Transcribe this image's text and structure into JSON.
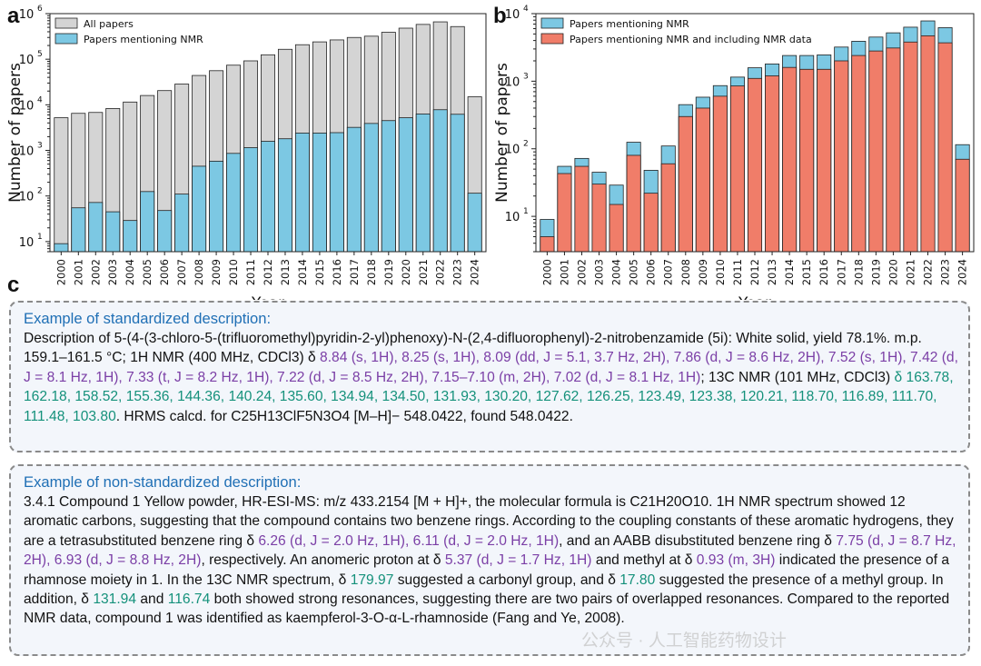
{
  "panels": {
    "a": "a",
    "b": "b",
    "c": "c"
  },
  "chart_data": [
    {
      "type": "bar",
      "panel": "a",
      "title": "",
      "xlabel": "Year",
      "ylabel": "Number of papers",
      "yscale": "log",
      "ylim": [
        6,
        1000000
      ],
      "yticks": [
        10,
        100,
        1000,
        10000,
        100000,
        1000000
      ],
      "ytick_labels": [
        "10^1",
        "10^2",
        "10^3",
        "10^4",
        "10^5",
        "10^6"
      ],
      "legend_position": "top-left",
      "categories": [
        "2000",
        "2001",
        "2002",
        "2003",
        "2004",
        "2005",
        "2006",
        "2007",
        "2008",
        "2009",
        "2010",
        "2011",
        "2012",
        "2013",
        "2014",
        "2015",
        "2016",
        "2017",
        "2018",
        "2019",
        "2020",
        "2021",
        "2022",
        "2023",
        "2024"
      ],
      "series": [
        {
          "name": "All papers",
          "color": "#d4d4d4",
          "values": [
            5200,
            6500,
            6800,
            8300,
            11500,
            16000,
            20500,
            28500,
            44000,
            56000,
            74000,
            92000,
            125000,
            165000,
            208000,
            240000,
            265000,
            300000,
            320000,
            390000,
            480000,
            580000,
            660000,
            520000,
            15000
          ]
        },
        {
          "name": "Papers mentioning NMR",
          "color": "#7cc8e3",
          "values": [
            9,
            55,
            72,
            45,
            29,
            125,
            48,
            110,
            450,
            580,
            860,
            1150,
            1580,
            1800,
            2400,
            2400,
            2450,
            3200,
            3900,
            4500,
            5200,
            6300,
            7800,
            6200,
            115
          ]
        }
      ]
    },
    {
      "type": "bar",
      "panel": "b",
      "title": "",
      "xlabel": "Year",
      "ylabel": "Number of papers",
      "yscale": "log",
      "ylim": [
        3,
        10000
      ],
      "yticks": [
        10,
        100,
        1000,
        10000
      ],
      "ytick_labels": [
        "10^1",
        "10^2",
        "10^3",
        "10^4"
      ],
      "legend_position": "top-left",
      "categories": [
        "2000",
        "2001",
        "2002",
        "2003",
        "2004",
        "2005",
        "2006",
        "2007",
        "2008",
        "2009",
        "2010",
        "2011",
        "2012",
        "2013",
        "2014",
        "2015",
        "2016",
        "2017",
        "2018",
        "2019",
        "2020",
        "2021",
        "2022",
        "2023",
        "2024"
      ],
      "series": [
        {
          "name": "Papers mentioning NMR",
          "color": "#7cc8e3",
          "values": [
            9,
            55,
            72,
            45,
            29,
            125,
            48,
            110,
            450,
            580,
            860,
            1150,
            1580,
            1800,
            2400,
            2400,
            2450,
            3200,
            3900,
            4500,
            5200,
            6300,
            7800,
            6200,
            115
          ]
        },
        {
          "name": "Papers mentioning NMR and including NMR data",
          "color": "#f07d69",
          "values": [
            5,
            43,
            55,
            30,
            15,
            80,
            22,
            60,
            300,
            400,
            600,
            850,
            1100,
            1200,
            1600,
            1500,
            1500,
            2000,
            2400,
            2800,
            3100,
            3800,
            4700,
            3700,
            70
          ]
        }
      ]
    }
  ],
  "box1": {
    "title": "Example of standardized description:",
    "s1": "Description of 5-(4-(3-chloro-5-(trifluoromethyl)pyridin-2-yl)phenoxy)-N-(2,4-difluorophenyl)-2-nitrobenzamide (5i): White solid, yield 78.1%. m.p. 159.1–161.5 °C; 1H NMR (400 MHz, CDCl3) δ ",
    "s2": "8.84 (s, 1H), 8.25 (s, 1H), 8.09 (dd, J = 5.1, 3.7 Hz, 2H), 7.86 (d, J = 8.6 Hz, 2H), 7.52 (s, 1H), 7.42 (d, J = 8.1 Hz, 1H), 7.33 (t, J = 8.2 Hz, 1H), 7.22 (d, J = 8.5 Hz, 2H), 7.15–7.10 (m, 2H), 7.02 (d, J = 8.1 Hz, 1H)",
    "s3": "; 13C NMR (101 MHz, CDCl3) ",
    "s4": "δ 163.78, 162.18, 158.52, 155.36, 144.36, 140.24, 135.60, 134.94, 134.50, 131.93, 130.20, 127.62, 126.25, 123.49, 123.38, 120.21, 118.70, 116.89, 111.70, 111.48, 103.80",
    "s5": ". HRMS calcd. for C25H13ClF5N3O4 [M–H]− 548.0422, found 548.0422."
  },
  "box2": {
    "title": "Example of non-standardized description:",
    "s1": "3.4.1 Compound 1 Yellow powder, HR-ESI-MS: m/z 433.2154 [M + H]+, the molecular formula is C21H20O10. 1H NMR spectrum showed 12 aromatic carbons, suggesting that the compound contains two benzene rings. According to the coupling constants of these aromatic hydrogens, they are a tetrasubstituted benzene ring δ ",
    "s2": "6.26 (d, J = 2.0 Hz, 1H), 6.11 (d, J = 2.0 Hz, 1H)",
    "s3": ", and an AABB disubstituted benzene ring δ ",
    "s4": "7.75 (d, J = 8.7 Hz, 2H), 6.93 (d, J = 8.8 Hz, 2H)",
    "s5": ", respectively. An anomeric proton at δ ",
    "s6": "5.37 (d, J = 1.7 Hz, 1H)",
    "s7": " and methyl at δ ",
    "s8": "0.93 (m, 3H)",
    "s9": " indicated the presence of a rhamnose moiety in 1. In the 13C NMR spectrum, δ ",
    "s10": "179.97",
    "s11": " suggested a carbonyl group, and δ ",
    "s12": "17.80",
    "s13": " suggested the presence of a methyl group. In addition, δ ",
    "s14": "131.94",
    "s15": " and ",
    "s16": "116.74",
    "s17": " both showed strong resonances, suggesting there are two pairs of overlapped resonances. Compared to the reported NMR data, compound 1 was identified as kaempferol-3-O-α-L-rhamnoside (Fang and Ye, 2008)."
  },
  "watermark": "公众号 · 人工智能药物设计"
}
